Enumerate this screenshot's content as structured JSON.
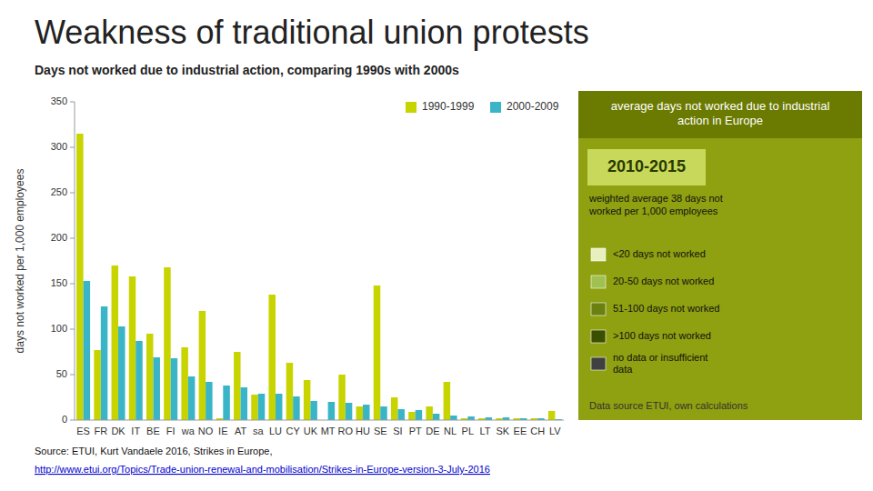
{
  "chart_data": {
    "type": "bar",
    "title": "Weakness of traditional union protests",
    "subtitle": "Days not worked due to industrial action, comparing 1990s with 2000s",
    "ylabel": "days not worked per 1,000 employees",
    "categories": [
      "ES",
      "FR",
      "DK",
      "IT",
      "BE",
      "FI",
      "wa",
      "NO",
      "IE",
      "AT",
      "sa",
      "LU",
      "CY",
      "UK",
      "MT",
      "RO",
      "HU",
      "SE",
      "SI",
      "PT",
      "DE",
      "NL",
      "PL",
      "LT",
      "SK",
      "EE",
      "CH",
      "LV"
    ],
    "series": [
      {
        "name": "1990-1999",
        "color": "#c8d400",
        "values": [
          315,
          77,
          170,
          158,
          95,
          168,
          80,
          120,
          2,
          75,
          28,
          138,
          63,
          44,
          0,
          50,
          15,
          148,
          25,
          9,
          15,
          42,
          2,
          2,
          2,
          2,
          2,
          10
        ]
      },
      {
        "name": "2000-2009",
        "color": "#3ab5c8",
        "values": [
          153,
          125,
          103,
          87,
          69,
          68,
          48,
          42,
          38,
          36,
          29,
          29,
          26,
          21,
          20,
          19,
          17,
          15,
          12,
          11,
          7,
          5,
          4,
          3,
          3,
          2,
          2,
          1
        ]
      }
    ],
    "ylim": [
      0,
      350
    ],
    "yticks": [
      0,
      50,
      100,
      150,
      200,
      250,
      300,
      350
    ],
    "grid": false,
    "legend": "upper right",
    "annotations": [
      "Source: ETUI, Kurt Vandaele 2016, Strikes in Europe, ",
      "http://www.etui.org/Topics/Trade-union-renewal-and-mobilisation/Strikes-in-Europe-version-3-July-2016",
      "average days not worked due to industrial\naction in Europe",
      "2010-2015",
      "weighted average 38 days not\nworked per 1,000 employees",
      "<20 days not worked",
      "20-50 days not worked",
      "51-100 days not worked",
      ">100 days not worked",
      "no data or insufficient\ndata",
      "Data source ETUI, own calculations"
    ]
  }
}
